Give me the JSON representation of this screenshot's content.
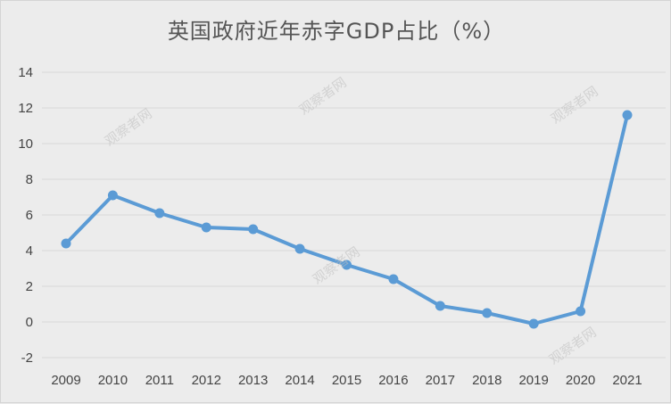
{
  "chart_data": {
    "type": "line",
    "title": "英国政府近年赤字GDP占比（%）",
    "xlabel": "",
    "ylabel": "",
    "categories": [
      "2009",
      "2010",
      "2011",
      "2012",
      "2013",
      "2014",
      "2015",
      "2016",
      "2017",
      "2018",
      "2019",
      "2020",
      "2021"
    ],
    "series": [
      {
        "values": [
          4.4,
          7.1,
          6.1,
          5.3,
          5.2,
          4.1,
          3.2,
          2.4,
          0.9,
          0.5,
          -0.1,
          0.6,
          11.6
        ]
      }
    ],
    "ylim": [
      -2,
      14
    ],
    "yticks": [
      -2,
      0,
      2,
      4,
      6,
      8,
      10,
      12,
      14
    ],
    "grid": true,
    "legend": "none",
    "colors": {
      "line": "#5b9bd5",
      "grid": "#d9d9d9",
      "background": "#ececec"
    }
  },
  "watermark_text": "观察者网"
}
